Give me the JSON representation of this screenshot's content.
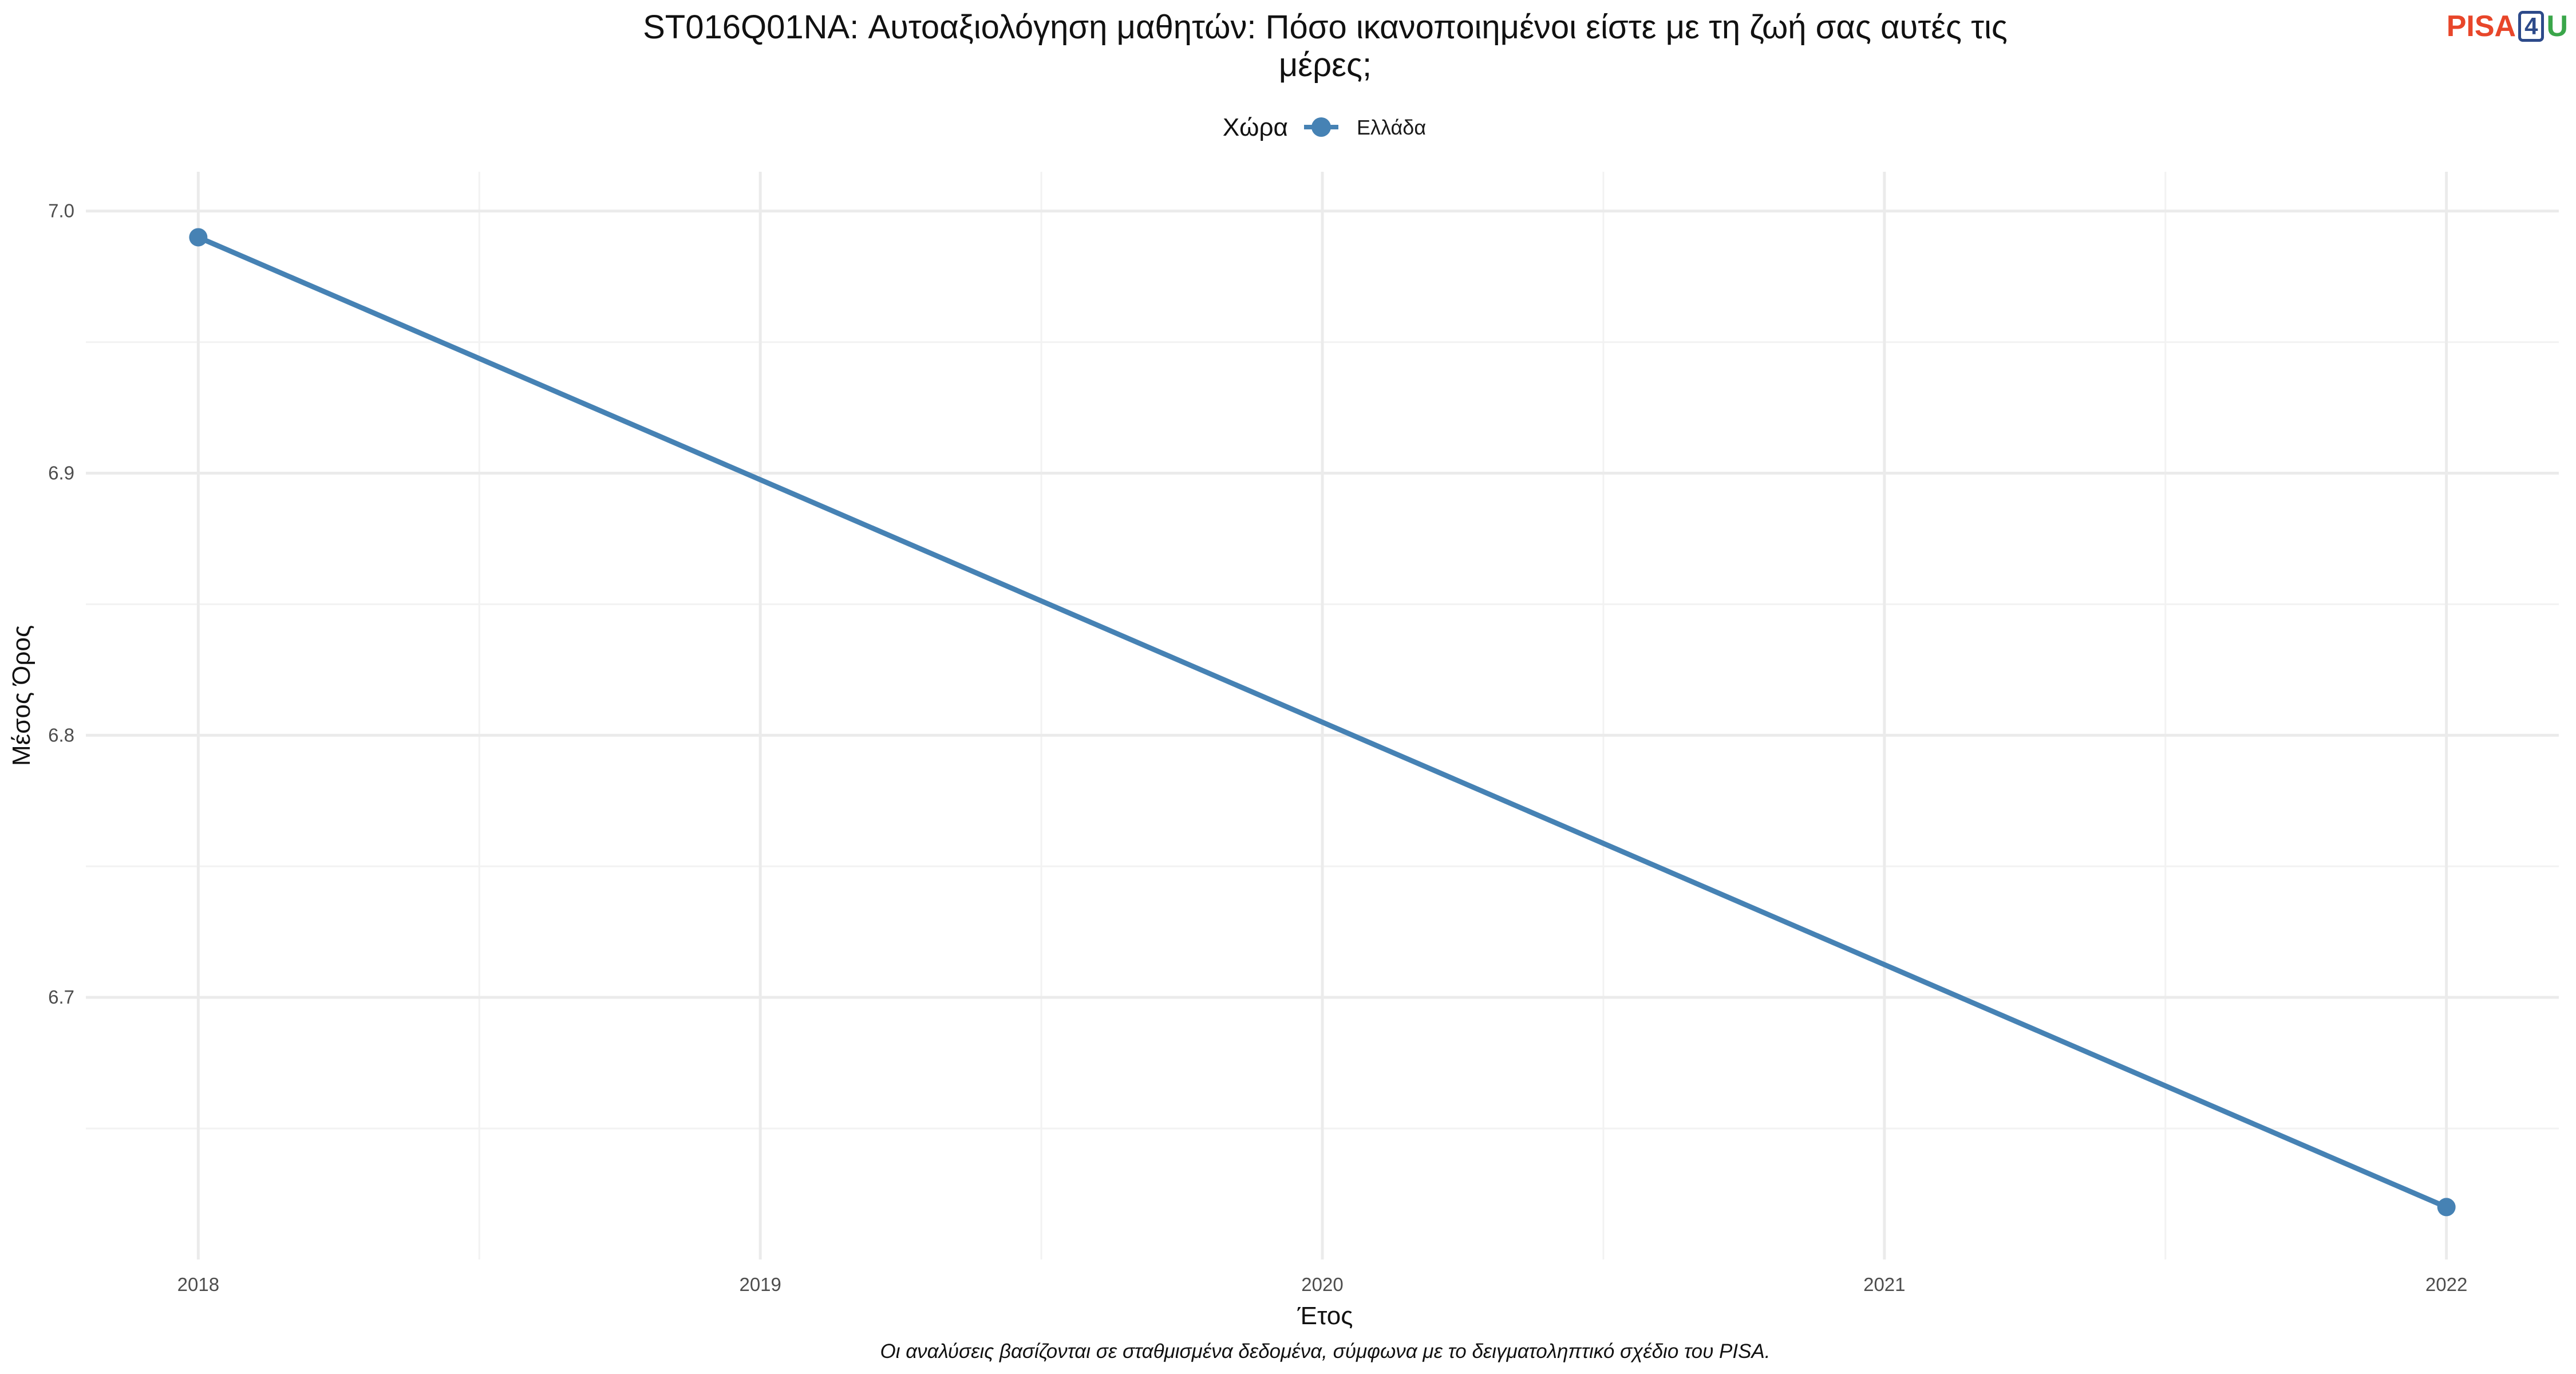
{
  "logo": {
    "part1": "PISA",
    "part2": "4",
    "part3": "U"
  },
  "chart_data": {
    "type": "line",
    "title": "ST016Q01NA: Αυτοαξιολόγηση μαθητών: Πόσο ικανοποιημένοι είστε με τη ζωή σας αυτές τις μέρες;",
    "title_lines": [
      "ST016Q01NA: Αυτοαξιολόγηση μαθητών: Πόσο ικανοποιημένοι είστε με τη ζωή σας αυτές τις",
      "μέρες;"
    ],
    "legend_title": "Χώρα",
    "legend_position": "top",
    "xlabel": "Έτος",
    "ylabel": "Μέσος Όρος",
    "caption": "Οι αναλύσεις βασίζονται σε σταθμισμένα δεδομένα, σύμφωνα με το δειγματοληπτικό σχέδιο του PISA.",
    "x_ticks": [
      "2018",
      "2019",
      "2020",
      "2021",
      "2022"
    ],
    "y_ticks": [
      "6.7",
      "6.8",
      "6.9",
      "7.0"
    ],
    "xlim": [
      2017.8,
      2022.2
    ],
    "ylim": [
      6.6,
      7.015
    ],
    "grid": true,
    "series": [
      {
        "name": "Ελλάδα",
        "color": "#4682b4",
        "x": [
          2018,
          2022
        ],
        "y": [
          6.99,
          6.62
        ]
      }
    ]
  }
}
